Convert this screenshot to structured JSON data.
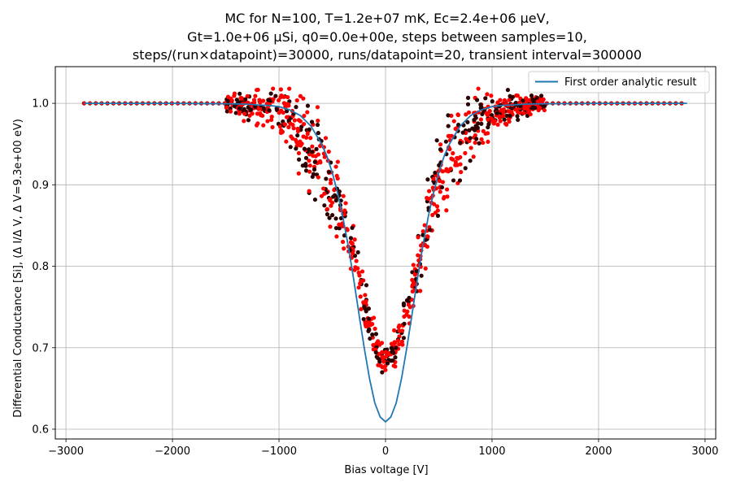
{
  "chart_data": {
    "type": "scatter",
    "title_lines": [
      "MC for N=100, T=1.2e+07 mK, Ec=2.4e+06 μeV,",
      "Gt=1.0e+06 μSi, q0=0.0e+00e, steps between samples=10,",
      "steps/(run×datapoint)=30000, runs/datapoint=20, transient interval=300000"
    ],
    "xlabel": "Bias voltage [V]",
    "ylabel": "Differential Conductance [Si], (Δ I/Δ V, Δ V=9.3e+00 eV)",
    "xlim": [
      -3100,
      3100
    ],
    "ylim": [
      0.588,
      1.045
    ],
    "xticks": [
      -3000,
      -2000,
      -1000,
      0,
      1000,
      2000,
      3000
    ],
    "xtick_labels": [
      "−3000",
      "−2000",
      "−1000",
      "0",
      "1000",
      "2000",
      "3000"
    ],
    "yticks": [
      0.6,
      0.7,
      0.8,
      0.9,
      1.0
    ],
    "ytick_labels": [
      "0.6",
      "0.7",
      "0.8",
      "0.9",
      "1.0"
    ],
    "grid": true,
    "legend_position": "top-right",
    "colors": {
      "analytic_line": "#1f77b4",
      "mc_red": "#ff0000",
      "mc_dark": "#2a0000",
      "grid": "#b0b0b0"
    },
    "series": [
      {
        "name": "First order analytic result",
        "kind": "line",
        "x": [
          -2830,
          -2500,
          -2000,
          -1500,
          -1300,
          -1200,
          -1100,
          -1000,
          -900,
          -800,
          -700,
          -600,
          -550,
          -500,
          -450,
          -400,
          -350,
          -300,
          -250,
          -200,
          -150,
          -100,
          -50,
          0,
          50,
          100,
          150,
          200,
          250,
          300,
          350,
          400,
          450,
          500,
          550,
          600,
          700,
          800,
          900,
          1000,
          1100,
          1200,
          1300,
          1500,
          2000,
          2500,
          2830
        ],
        "y": [
          1.0,
          1.0,
          1.0,
          0.9995,
          0.999,
          0.998,
          0.9975,
          0.996,
          0.992,
          0.985,
          0.972,
          0.95,
          0.935,
          0.915,
          0.89,
          0.86,
          0.825,
          0.785,
          0.742,
          0.7,
          0.662,
          0.632,
          0.615,
          0.609,
          0.615,
          0.632,
          0.662,
          0.7,
          0.742,
          0.785,
          0.825,
          0.86,
          0.89,
          0.915,
          0.935,
          0.95,
          0.972,
          0.985,
          0.992,
          0.996,
          0.9975,
          0.998,
          0.999,
          0.9995,
          1.0,
          1.0,
          1.0
        ]
      },
      {
        "name": "",
        "kind": "points",
        "plateau_x_range": [
          -2830,
          2830
        ],
        "plateau_x_step": 55,
        "plateau_y": 1.0,
        "cloud_x": [
          -1500,
          -1400,
          -1300,
          -1200,
          -1100,
          -1000,
          -950,
          -900,
          -850,
          -800,
          -750,
          -700,
          -650,
          -600,
          -550,
          -500,
          -450,
          -400,
          -350,
          -300,
          -250,
          -200,
          -150,
          -100,
          -50,
          0,
          50,
          100,
          150,
          200,
          250,
          300,
          350,
          400,
          450,
          500,
          550,
          600,
          650,
          700,
          750,
          800,
          850,
          900,
          950,
          1000,
          1100,
          1200,
          1300,
          1400,
          1500
        ],
        "cloud_y": [
          0.999,
          0.998,
          0.996,
          0.995,
          0.993,
          0.99,
          0.985,
          0.978,
          0.97,
          0.962,
          0.952,
          0.942,
          0.93,
          0.918,
          0.905,
          0.89,
          0.875,
          0.86,
          0.84,
          0.815,
          0.785,
          0.755,
          0.73,
          0.705,
          0.69,
          0.685,
          0.69,
          0.7,
          0.72,
          0.74,
          0.77,
          0.8,
          0.835,
          0.86,
          0.885,
          0.905,
          0.92,
          0.935,
          0.947,
          0.958,
          0.965,
          0.972,
          0.978,
          0.982,
          0.986,
          0.989,
          0.993,
          0.995,
          0.997,
          0.998,
          0.999
        ],
        "cloud_spread": [
          0.004,
          0.006,
          0.008,
          0.01,
          0.012,
          0.014,
          0.016,
          0.018,
          0.02,
          0.022,
          0.024,
          0.025,
          0.026,
          0.026,
          0.025,
          0.024,
          0.022,
          0.02,
          0.018,
          0.016,
          0.015,
          0.014,
          0.012,
          0.01,
          0.009,
          0.008,
          0.009,
          0.01,
          0.012,
          0.014,
          0.016,
          0.018,
          0.02,
          0.022,
          0.024,
          0.025,
          0.026,
          0.026,
          0.025,
          0.024,
          0.022,
          0.02,
          0.018,
          0.016,
          0.014,
          0.012,
          0.01,
          0.008,
          0.006,
          0.005,
          0.004
        ]
      }
    ]
  }
}
